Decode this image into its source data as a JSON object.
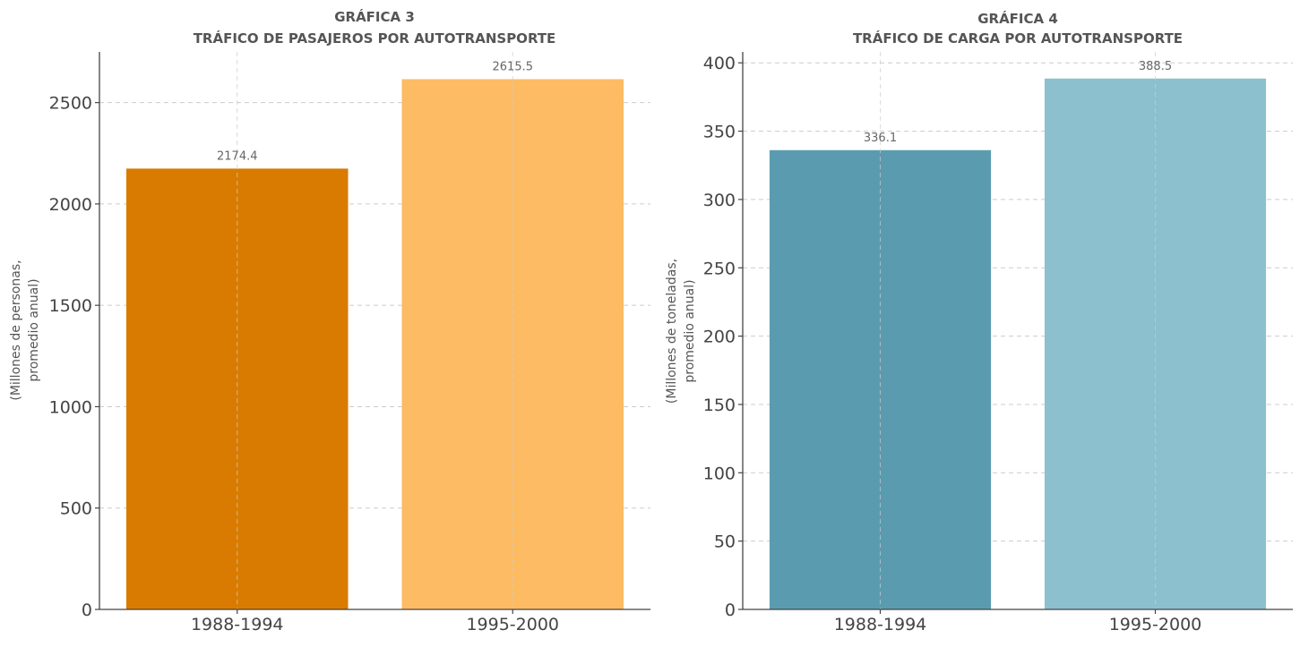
{
  "chart_data": [
    {
      "type": "bar",
      "title": "GRÁFICA 3",
      "subtitle": "TRÁFICO DE PASAJEROS POR AUTOTRANSPORTE",
      "xlabel": "",
      "ylabel": [
        "(Millones de personas,",
        "promedio anual)"
      ],
      "categories": [
        "1988-1994",
        "1995-2000"
      ],
      "values": [
        2174.4,
        2615.5
      ],
      "value_labels": [
        "2174.4",
        "2615.5"
      ],
      "colors": [
        "#D97B00",
        "#FDBB63"
      ],
      "ylim": [
        0,
        2750
      ],
      "yticks": [
        0,
        500,
        1000,
        1500,
        2000,
        2500
      ],
      "ytick_labels": [
        "0",
        "500",
        "1000",
        "1500",
        "2000",
        "2500"
      ],
      "grid": true
    },
    {
      "type": "bar",
      "title": "GRÁFICA 4",
      "subtitle": "TRÁFICO DE CARGA POR AUTOTRANSPORTE",
      "xlabel": "",
      "ylabel": [
        "(Millones de toneladas,",
        "promedio anual)"
      ],
      "categories": [
        "1988-1994",
        "1995-2000"
      ],
      "values": [
        336.1,
        388.5
      ],
      "value_labels": [
        "336.1",
        "388.5"
      ],
      "colors": [
        "#5B9BAF",
        "#8CC0CE"
      ],
      "ylim": [
        0,
        408
      ],
      "yticks": [
        0,
        50,
        100,
        150,
        200,
        250,
        300,
        350,
        400
      ],
      "ytick_labels": [
        "0",
        "50",
        "100",
        "150",
        "200",
        "250",
        "300",
        "350",
        "400"
      ],
      "grid": true
    }
  ]
}
